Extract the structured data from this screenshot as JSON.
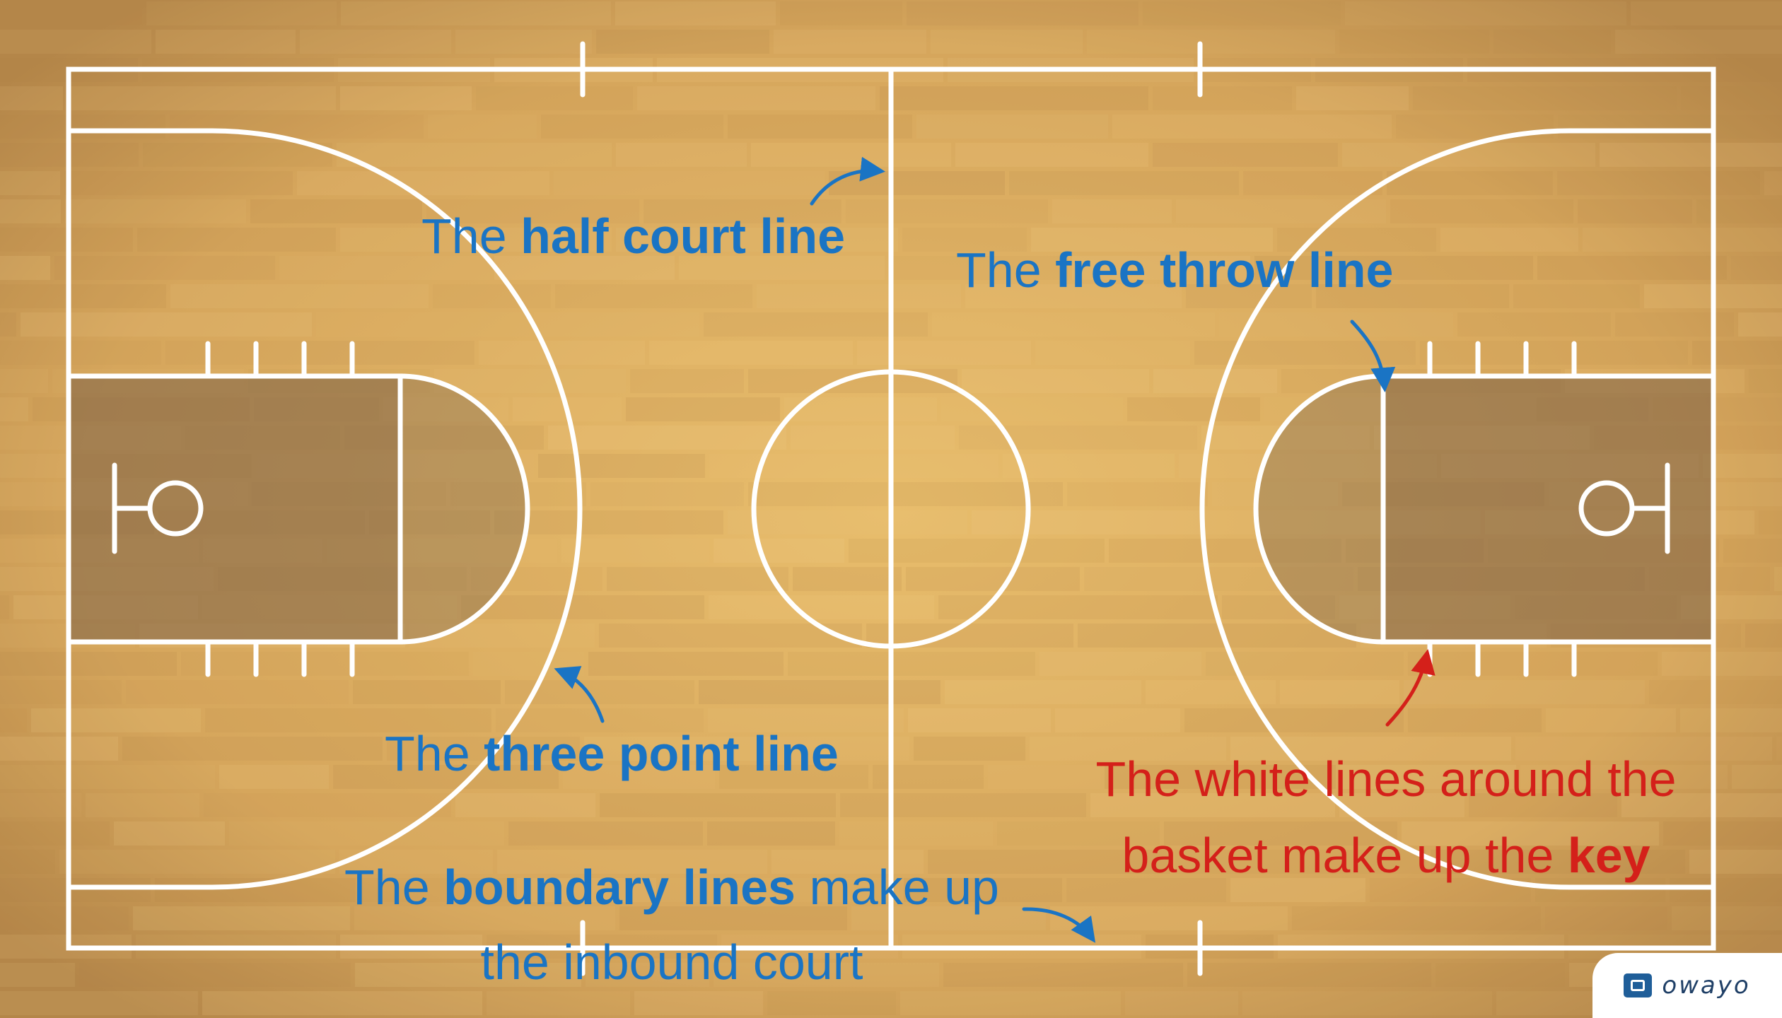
{
  "colors": {
    "wood": "#c99a55",
    "lines": "#ffffff",
    "key_fill": "#7a5f45",
    "blue_text": "#1a74c4",
    "red_text": "#d4201a"
  },
  "labels": {
    "half_court": {
      "pre": "The ",
      "bold": "half court line",
      "post": ""
    },
    "free_throw": {
      "pre": "The ",
      "bold": "free throw line",
      "post": ""
    },
    "three_point": {
      "pre": "The ",
      "bold": "three point line",
      "post": ""
    },
    "boundary": {
      "line1_pre": "The ",
      "line1_bold": "boundary lines",
      "line1_post": " make up",
      "line2": "the inbound court"
    },
    "key": {
      "line1": "The white lines around the",
      "line2_pre": "basket make up the ",
      "line2_bold": "key"
    }
  },
  "brand": {
    "name": "owayo",
    "icon": "logo-square-icon"
  }
}
